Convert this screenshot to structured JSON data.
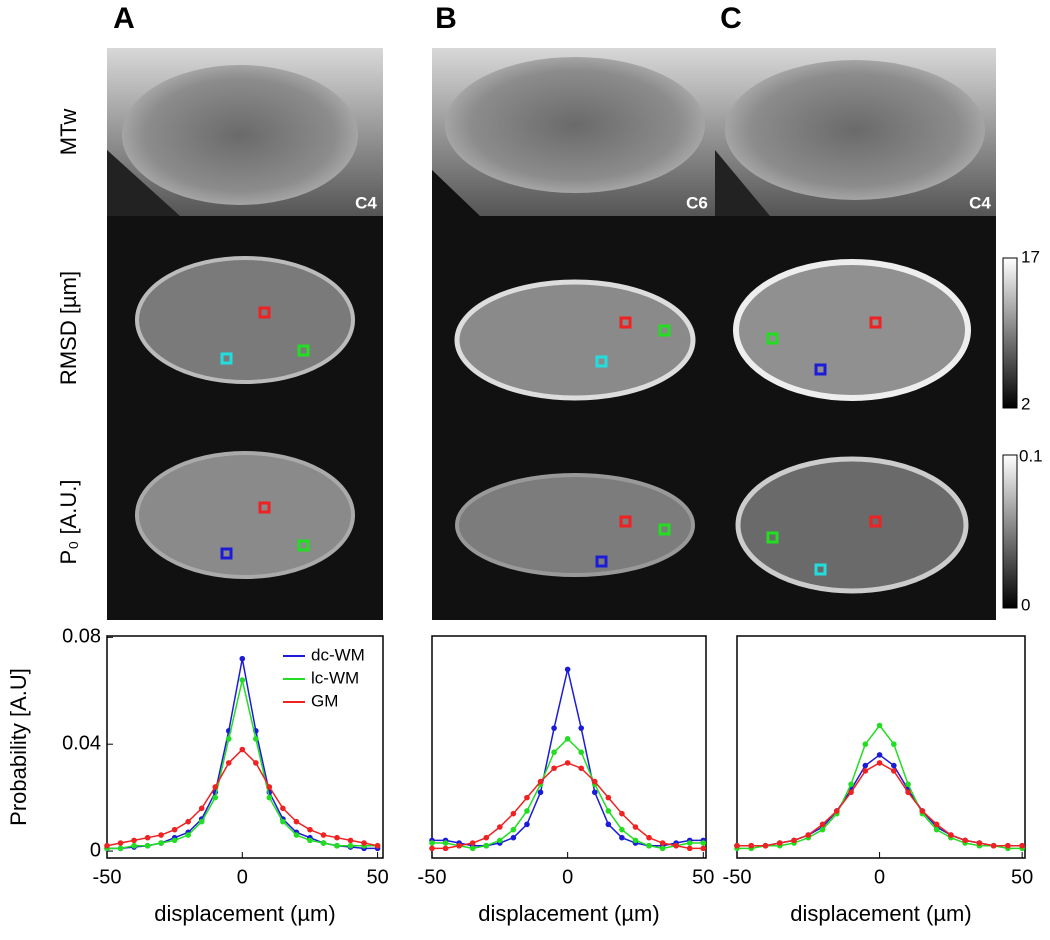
{
  "panel_labels": [
    "A",
    "B",
    "C"
  ],
  "row_labels": [
    "MTw",
    "RMSD [µm]",
    "P₀ [A.U.]"
  ],
  "level_labels": [
    "C4",
    "C6",
    "C4"
  ],
  "colorbars": [
    {
      "max": 17,
      "min": 2
    },
    {
      "max": 0.1,
      "min": 0
    }
  ],
  "chart_data": [
    {
      "type": "line",
      "xlabel": "displacement (µm)",
      "ylabel": "Probability [A.U]",
      "legend": "upper right",
      "x": [
        -50,
        -45,
        -40,
        -35,
        -30,
        -25,
        -20,
        -15,
        -10,
        -5,
        0,
        5,
        10,
        15,
        20,
        25,
        30,
        35,
        40,
        45,
        50
      ],
      "xlim": [
        -50,
        52
      ],
      "ylim": [
        -0.0026,
        0.0805
      ],
      "xticks": [
        -50,
        0,
        50
      ],
      "yticks": [
        0,
        0.04,
        0.08
      ],
      "series": [
        {
          "name": "dc-WM",
          "color": "#1c1cd8",
          "values": [
            0.001,
            0.001,
            0.0015,
            0.002,
            0.003,
            0.005,
            0.007,
            0.012,
            0.022,
            0.045,
            0.072,
            0.045,
            0.022,
            0.012,
            0.007,
            0.005,
            0.003,
            0.002,
            0.0015,
            0.001,
            0.001
          ]
        },
        {
          "name": "lc-WM",
          "color": "#22dd22",
          "values": [
            0.001,
            0.001,
            0.002,
            0.002,
            0.003,
            0.004,
            0.006,
            0.011,
            0.02,
            0.042,
            0.064,
            0.042,
            0.02,
            0.011,
            0.006,
            0.004,
            0.003,
            0.002,
            0.002,
            0.002,
            0.002
          ]
        },
        {
          "name": "GM",
          "color": "#ee2222",
          "values": [
            0.002,
            0.003,
            0.004,
            0.005,
            0.006,
            0.008,
            0.011,
            0.016,
            0.024,
            0.033,
            0.038,
            0.033,
            0.024,
            0.016,
            0.011,
            0.008,
            0.006,
            0.005,
            0.004,
            0.003,
            0.002
          ]
        }
      ]
    },
    {
      "type": "line",
      "xlabel": "displacement (µm)",
      "x": [
        -50,
        -45,
        -40,
        -35,
        -30,
        -25,
        -20,
        -15,
        -10,
        -5,
        0,
        5,
        10,
        15,
        20,
        25,
        30,
        35,
        40,
        45,
        50
      ],
      "xlim": [
        -50,
        51
      ],
      "ylim": [
        -0.0026,
        0.0805
      ],
      "xticks": [
        -50,
        0,
        50
      ],
      "series": [
        {
          "name": "dc-WM",
          "color": "#1c1cd8",
          "values": [
            0.004,
            0.004,
            0.003,
            0.002,
            0.002,
            0.003,
            0.005,
            0.01,
            0.022,
            0.046,
            0.068,
            0.046,
            0.022,
            0.01,
            0.005,
            0.003,
            0.002,
            0.002,
            0.003,
            0.004,
            0.004
          ]
        },
        {
          "name": "lc-WM",
          "color": "#22dd22",
          "values": [
            0.003,
            0.003,
            0.002,
            0.001,
            0.002,
            0.004,
            0.008,
            0.015,
            0.025,
            0.037,
            0.042,
            0.037,
            0.025,
            0.015,
            0.008,
            0.004,
            0.002,
            0.001,
            0.002,
            0.003,
            0.003
          ]
        },
        {
          "name": "GM",
          "color": "#ee2222",
          "values": [
            0.001,
            0.001,
            0.002,
            0.003,
            0.005,
            0.009,
            0.014,
            0.02,
            0.026,
            0.031,
            0.033,
            0.031,
            0.026,
            0.02,
            0.014,
            0.009,
            0.005,
            0.003,
            0.002,
            0.001,
            0.001
          ]
        }
      ]
    },
    {
      "type": "line",
      "xlabel": "displacement (µm)",
      "x": [
        -50,
        -45,
        -40,
        -35,
        -30,
        -25,
        -20,
        -15,
        -10,
        -5,
        0,
        5,
        10,
        15,
        20,
        25,
        30,
        35,
        40,
        45,
        50
      ],
      "xlim": [
        -50,
        51
      ],
      "ylim": [
        -0.0026,
        0.0805
      ],
      "xticks": [
        -50,
        0,
        50
      ],
      "series": [
        {
          "name": "dc-WM",
          "color": "#1c1cd8",
          "values": [
            0.002,
            0.002,
            0.002,
            0.003,
            0.004,
            0.006,
            0.009,
            0.015,
            0.023,
            0.032,
            0.036,
            0.032,
            0.023,
            0.015,
            0.009,
            0.006,
            0.004,
            0.003,
            0.002,
            0.002,
            0.002
          ]
        },
        {
          "name": "lc-WM",
          "color": "#22dd22",
          "values": [
            0.001,
            0.001,
            0.002,
            0.002,
            0.003,
            0.005,
            0.008,
            0.014,
            0.025,
            0.04,
            0.047,
            0.04,
            0.025,
            0.014,
            0.008,
            0.005,
            0.003,
            0.002,
            0.002,
            0.001,
            0.001
          ]
        },
        {
          "name": "GM",
          "color": "#ee2222",
          "values": [
            0.002,
            0.002,
            0.002,
            0.003,
            0.004,
            0.006,
            0.01,
            0.015,
            0.022,
            0.03,
            0.033,
            0.03,
            0.022,
            0.015,
            0.01,
            0.006,
            0.004,
            0.003,
            0.002,
            0.002,
            0.002
          ]
        }
      ]
    }
  ]
}
